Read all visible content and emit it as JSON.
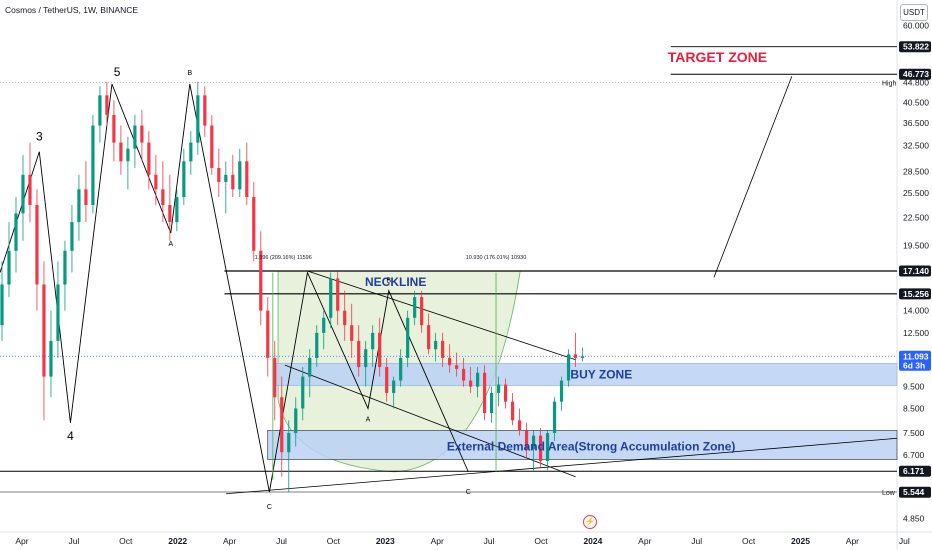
{
  "header": {
    "symbol_title": "Cosmos / TetherUS, 1W, BINANCE",
    "unit": "USDT"
  },
  "chart_data": {
    "type": "candlestick",
    "price_axis": {
      "scale": "log",
      "ticks": [
        "60.000",
        "40.500",
        "36.500",
        "32.500",
        "28.500",
        "25.500",
        "22.500",
        "19.500",
        "14.000",
        "12.500",
        "9.500",
        "8.500",
        "7.500",
        "6.700",
        "4.850"
      ],
      "tick_values": [
        60.0,
        40.5,
        36.5,
        32.5,
        28.5,
        25.5,
        22.5,
        19.5,
        14.0,
        12.5,
        9.5,
        8.5,
        7.5,
        6.7,
        4.85
      ]
    },
    "time_axis": {
      "ticks": [
        "Apr",
        "Jul",
        "Oct",
        "2022",
        "Apr",
        "Jul",
        "Oct",
        "2023",
        "Apr",
        "Jul",
        "Oct",
        "2024",
        "Apr",
        "Jul",
        "Oct",
        "2025",
        "Apr",
        "Jul"
      ]
    },
    "price_tags": [
      {
        "label": "53.822",
        "value": 53.822,
        "style": "dark"
      },
      {
        "label": "46.773",
        "value": 46.773,
        "style": "dark"
      },
      {
        "label": "44.800",
        "value": 44.8,
        "prefix": "High",
        "style": "plain"
      },
      {
        "label": "17.140",
        "value": 17.14,
        "style": "dark"
      },
      {
        "label": "15.256",
        "value": 15.256,
        "style": "dark"
      },
      {
        "label": "11.093",
        "value": 11.093,
        "sublabel": "6d 3h",
        "style": "blue"
      },
      {
        "label": "6.171",
        "value": 6.171,
        "style": "dark"
      },
      {
        "label": "5.550",
        "value": 5.55,
        "prefix": "Low",
        "style": "plain"
      },
      {
        "label": "5.544",
        "value": 5.544,
        "style": "dark"
      }
    ],
    "annotations": {
      "target_zone": "TARGET ZONE",
      "neckline": "NECKLINE",
      "buy_zone": "BUY ZONE",
      "demand_area": "External Demand Area(Strong Accumulation Zone)",
      "measure_left": "1.596 (209.16%) 11596",
      "measure_right": "10.930 (176.01%) 10930",
      "wave_3": "3",
      "wave_4": "4",
      "wave_5": "5",
      "wave_A1": "A",
      "wave_B1": "B",
      "wave_C1": "C",
      "wave_A2": "A",
      "wave_B2": "B",
      "wave_C2": "C"
    },
    "colors": {
      "up": "#089981",
      "down": "#f23645",
      "current_price": "#2962ff",
      "zone_blue": "#bbd2f5",
      "pattern_green": "#e6f0d9",
      "target_red": "#e91e3c"
    }
  }
}
